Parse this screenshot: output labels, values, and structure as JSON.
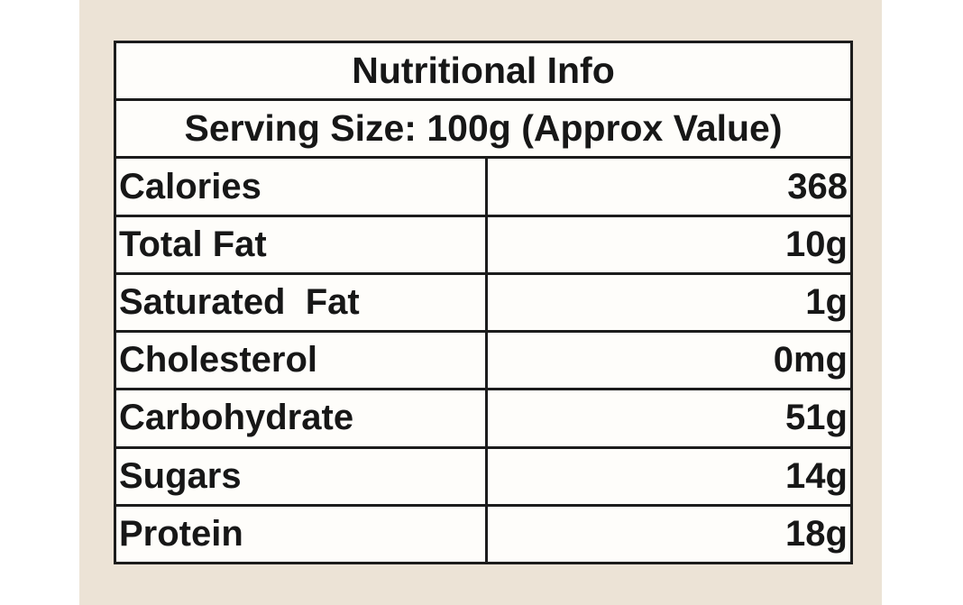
{
  "colors": {
    "page-bg": "#ffffff",
    "panel-bg": "#ece3d6",
    "cell-bg": "#fefdfa",
    "border-color": "#1c1c1c",
    "text-color": "#171717"
  },
  "table": {
    "title": "Nutritional Info",
    "serving_line": "Serving Size: 100g (Approx Value)",
    "rows": [
      {
        "label": "Calories",
        "value": "368"
      },
      {
        "label": "Total Fat",
        "value": "10g"
      },
      {
        "label": "Saturated  Fat",
        "value": "1g"
      },
      {
        "label": "Cholesterol",
        "value": "0mg"
      },
      {
        "label": "Carbohydrate",
        "value": "51g"
      },
      {
        "label": "Sugars",
        "value": "14g"
      },
      {
        "label": "Protein",
        "value": "18g"
      }
    ]
  }
}
